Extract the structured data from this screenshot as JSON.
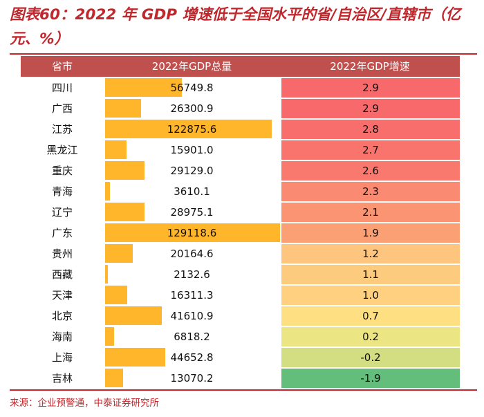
{
  "title": "图表60：2022 年 GDP 增速低于全国水平的省/自治区/直辖市（亿元、%）",
  "source": "来源：企业预警通，中泰证券研究所",
  "colors": {
    "accent": "#c0282d",
    "header_bg": "#c0504d",
    "bar": "#ffb62b",
    "growth_high": "#f8696b",
    "growth_mid": "#ffeb84",
    "growth_low": "#63be7b"
  },
  "chart_data": {
    "type": "table",
    "columns": [
      "省市",
      "2022年GDP总量",
      "2022年GDP增速"
    ],
    "rows": [
      {
        "province": "四川",
        "gdp": "56749.8",
        "growth": "2.9"
      },
      {
        "province": "广西",
        "gdp": "26300.9",
        "growth": "2.9"
      },
      {
        "province": "江苏",
        "gdp": "122875.6",
        "growth": "2.8"
      },
      {
        "province": "黑龙江",
        "gdp": "15901.0",
        "growth": "2.7"
      },
      {
        "province": "重庆",
        "gdp": "29129.0",
        "growth": "2.6"
      },
      {
        "province": "青海",
        "gdp": "3610.1",
        "growth": "2.3"
      },
      {
        "province": "辽宁",
        "gdp": "28975.1",
        "growth": "2.1"
      },
      {
        "province": "广东",
        "gdp": "129118.6",
        "growth": "1.9"
      },
      {
        "province": "贵州",
        "gdp": "20164.6",
        "growth": "1.2"
      },
      {
        "province": "西藏",
        "gdp": "2132.6",
        "growth": "1.1"
      },
      {
        "province": "天津",
        "gdp": "16311.3",
        "growth": "1.0"
      },
      {
        "province": "北京",
        "gdp": "41610.9",
        "growth": "0.7"
      },
      {
        "province": "海南",
        "gdp": "6818.2",
        "growth": "0.2"
      },
      {
        "province": "上海",
        "gdp": "44652.8",
        "growth": "-0.2"
      },
      {
        "province": "吉林",
        "gdp": "13070.2",
        "growth": "-1.9"
      }
    ]
  }
}
